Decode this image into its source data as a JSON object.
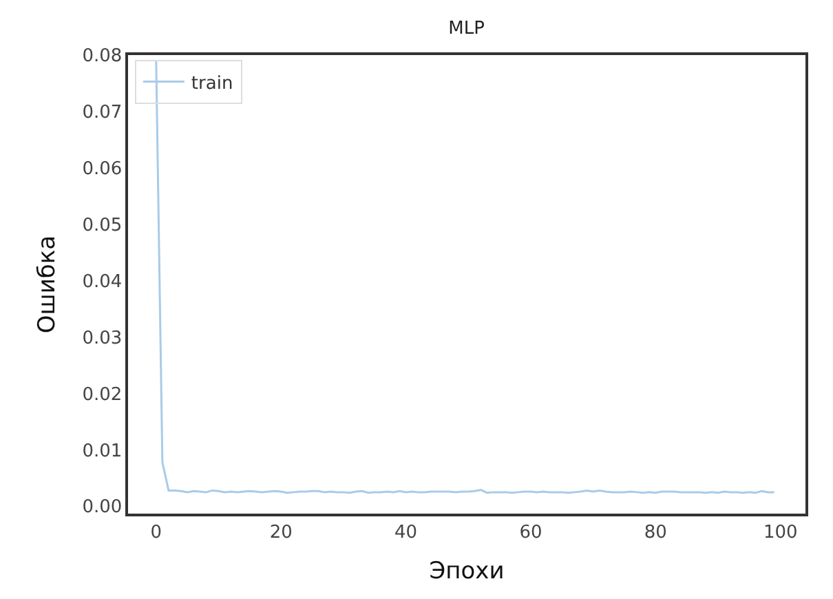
{
  "chart_data": {
    "type": "line",
    "title": "MLP",
    "xlabel": "Эпохи",
    "ylabel": "Ошибка",
    "x": [
      0,
      1,
      2,
      3,
      4,
      5,
      6,
      7,
      8,
      9,
      10,
      11,
      12,
      13,
      14,
      15,
      16,
      17,
      18,
      19,
      20,
      21,
      22,
      23,
      24,
      25,
      26,
      27,
      28,
      29,
      30,
      31,
      32,
      33,
      34,
      35,
      36,
      37,
      38,
      39,
      40,
      41,
      42,
      43,
      44,
      45,
      46,
      47,
      48,
      49,
      50,
      51,
      52,
      53,
      54,
      55,
      56,
      57,
      58,
      59,
      60,
      61,
      62,
      63,
      64,
      65,
      66,
      67,
      68,
      69,
      70,
      71,
      72,
      73,
      74,
      75,
      76,
      77,
      78,
      79,
      80,
      81,
      82,
      83,
      84,
      85,
      86,
      87,
      88,
      89,
      90,
      91,
      92,
      93,
      94,
      95,
      96,
      97,
      98,
      99
    ],
    "series": [
      {
        "name": "train",
        "color": "#a9cbe8",
        "values": [
          0.079,
          0.0078,
          0.0028,
          0.0028,
          0.0027,
          0.0025,
          0.0027,
          0.0026,
          0.0025,
          0.0028,
          0.0027,
          0.0025,
          0.0026,
          0.0025,
          0.0026,
          0.0027,
          0.0026,
          0.0025,
          0.0026,
          0.0027,
          0.0026,
          0.0024,
          0.0025,
          0.0026,
          0.0026,
          0.0027,
          0.0027,
          0.0025,
          0.0026,
          0.0025,
          0.0025,
          0.0024,
          0.0026,
          0.0027,
          0.0024,
          0.0025,
          0.0025,
          0.0026,
          0.0025,
          0.0027,
          0.0025,
          0.0026,
          0.0025,
          0.0025,
          0.0026,
          0.0026,
          0.0026,
          0.0026,
          0.0025,
          0.0026,
          0.0026,
          0.0027,
          0.0029,
          0.0024,
          0.0025,
          0.0025,
          0.0025,
          0.0024,
          0.0025,
          0.0026,
          0.0026,
          0.0025,
          0.0026,
          0.0025,
          0.0025,
          0.0025,
          0.0024,
          0.0025,
          0.0026,
          0.0028,
          0.0026,
          0.0028,
          0.0026,
          0.0025,
          0.0025,
          0.0025,
          0.0026,
          0.0025,
          0.0024,
          0.0025,
          0.0024,
          0.0026,
          0.0026,
          0.0026,
          0.0025,
          0.0025,
          0.0025,
          0.0025,
          0.0024,
          0.0025,
          0.0024,
          0.0026,
          0.0025,
          0.0025,
          0.0024,
          0.0025,
          0.0024,
          0.0027,
          0.0025,
          0.0025
        ]
      }
    ],
    "xlim": [
      -4.5,
      104
    ],
    "xticks": [
      0,
      20,
      40,
      60,
      80,
      100
    ],
    "ylim": [
      -0.0013,
      0.08
    ],
    "yticks": [
      {
        "value": 0,
        "label": "0.00"
      },
      {
        "value": 0.01,
        "label": "0.01"
      },
      {
        "value": 0.02,
        "label": "0.02"
      },
      {
        "value": 0.03,
        "label": "0.03"
      },
      {
        "value": 0.04,
        "label": "0.04"
      },
      {
        "value": 0.05,
        "label": "0.05"
      },
      {
        "value": 0.06,
        "label": "0.06"
      },
      {
        "value": 0.07,
        "label": "0.07"
      },
      {
        "value": 0.08,
        "label": "0.08"
      }
    ],
    "legend": "top left",
    "marker": "none",
    "line_style": "solid"
  }
}
